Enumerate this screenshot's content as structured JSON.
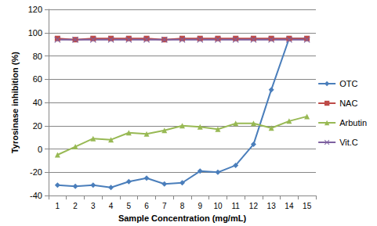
{
  "chart_data": {
    "type": "line",
    "x_label": "Sample Concentration (mg/mL)",
    "y_label": "Tyrosinase inhibition (%)",
    "categories": [
      1,
      2,
      3,
      4,
      5,
      6,
      7,
      8,
      9,
      10,
      11,
      12,
      13,
      14,
      15
    ],
    "series": [
      {
        "name": "OTC",
        "color": "#4a7ebb",
        "marker": "diamond",
        "values": [
          -31,
          -32,
          -31,
          -33,
          -28,
          -25,
          -30,
          -29,
          -19,
          -20,
          -14,
          4,
          51,
          95,
          95
        ]
      },
      {
        "name": "NAC",
        "color": "#be4b48",
        "marker": "square",
        "values": [
          95,
          94,
          95,
          95,
          95,
          95,
          94,
          95,
          95,
          95,
          95,
          95,
          95,
          95,
          95
        ]
      },
      {
        "name": "Arbutin",
        "color": "#98b954",
        "marker": "triangle",
        "values": [
          -5,
          2,
          9,
          8,
          14,
          13,
          16,
          20,
          19,
          17,
          22,
          22,
          18,
          24,
          28
        ]
      },
      {
        "name": "Vit.C",
        "color": "#7d60a0",
        "marker": "x",
        "values": [
          94,
          94,
          94,
          94,
          94,
          94,
          94,
          94,
          94,
          94,
          94,
          94,
          94,
          94,
          94
        ]
      }
    ],
    "ylim": [
      -40,
      120
    ],
    "yticks": [
      -40,
      -20,
      0,
      20,
      40,
      60,
      80,
      100,
      120
    ],
    "grid": true,
    "legend": "right"
  }
}
